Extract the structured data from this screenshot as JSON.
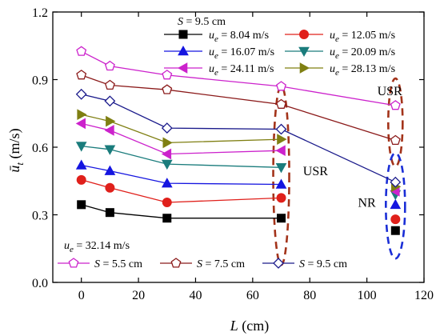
{
  "chart_data": {
    "type": "line",
    "xlabel": "L (cm)",
    "ylabel": "ū_t (m/s)",
    "xlim": [
      -10,
      120
    ],
    "ylim": [
      0.0,
      1.2
    ],
    "x_ticks": [
      "0",
      "20",
      "40",
      "60",
      "80",
      "100",
      "120"
    ],
    "y_ticks": [
      "0.0",
      "0.3",
      "0.6",
      "0.9",
      "1.2"
    ],
    "grid": false,
    "legends": [
      {
        "position": "top-right",
        "header": "S = 9.5 cm",
        "entries": [
          {
            "label": "u_e = 8.04 m/s",
            "series": 0
          },
          {
            "label": "u_e = 12.05 m/s",
            "series": 1
          },
          {
            "label": "u_e = 16.07 m/s",
            "series": 2
          },
          {
            "label": "u_e = 20.09 m/s",
            "series": 3
          },
          {
            "label": "u_e = 24.11 m/s",
            "series": 4
          },
          {
            "label": "u_e = 28.13 m/s",
            "series": 5
          }
        ]
      },
      {
        "position": "bottom-left",
        "header": "u_e = 32.14 m/s",
        "entries": [
          {
            "label": "S = 5.5 cm",
            "series": 6
          },
          {
            "label": "S = 7.5 cm",
            "series": 7
          },
          {
            "label": "S = 9.5 cm",
            "series": 8
          }
        ]
      }
    ],
    "series": [
      {
        "name": "u_e = 8.04 m/s",
        "color": "#000000",
        "marker": "square",
        "filled": true,
        "x": [
          0,
          10,
          30,
          70
        ],
        "y": [
          0.345,
          0.31,
          0.285,
          0.285
        ],
        "extra": {
          "x": 110,
          "y": 0.23
        }
      },
      {
        "name": "u_e = 12.05 m/s",
        "color": "#e0201b",
        "marker": "circle",
        "filled": true,
        "x": [
          0,
          10,
          30,
          70
        ],
        "y": [
          0.455,
          0.42,
          0.355,
          0.375
        ],
        "extra": {
          "x": 110,
          "y": 0.28
        }
      },
      {
        "name": "u_e = 16.07 m/s",
        "color": "#1515e0",
        "marker": "triangle-up",
        "filled": true,
        "x": [
          0,
          10,
          30,
          70
        ],
        "y": [
          0.52,
          0.495,
          0.44,
          0.435
        ],
        "extra": {
          "x": 110,
          "y": 0.345
        }
      },
      {
        "name": "u_e = 20.09 m/s",
        "color": "#1a7c7c",
        "marker": "triangle-down",
        "filled": true,
        "x": [
          0,
          10,
          30,
          70
        ],
        "y": [
          0.605,
          0.59,
          0.525,
          0.51
        ],
        "extra": {
          "x": 110,
          "y": 0.39
        }
      },
      {
        "name": "u_e = 24.11 m/s",
        "color": "#cc22cc",
        "marker": "triangle-left",
        "filled": true,
        "x": [
          0,
          10,
          30,
          70
        ],
        "y": [
          0.705,
          0.675,
          0.57,
          0.585
        ],
        "extra": {
          "x": 110,
          "y": 0.405
        }
      },
      {
        "name": "u_e = 28.13 m/s",
        "color": "#7f7f12",
        "marker": "triangle-right",
        "filled": true,
        "x": [
          0,
          10,
          30,
          70
        ],
        "y": [
          0.745,
          0.715,
          0.62,
          0.635
        ],
        "extra": {
          "x": 110,
          "y": 0.425
        }
      },
      {
        "name": "S = 5.5 cm",
        "color": "#cc22cc",
        "marker": "pentagon",
        "filled": false,
        "x": [
          0,
          10,
          30,
          70,
          110
        ],
        "y": [
          1.025,
          0.96,
          0.92,
          0.87,
          0.785
        ]
      },
      {
        "name": "S = 7.5 cm",
        "color": "#8b1a1a",
        "marker": "pentagon",
        "filled": false,
        "x": [
          0,
          10,
          30,
          70,
          110
        ],
        "y": [
          0.92,
          0.875,
          0.855,
          0.79,
          0.63
        ]
      },
      {
        "name": "S = 9.5 cm",
        "color": "#1a1a8b",
        "marker": "diamond",
        "filled": false,
        "x": [
          0,
          10,
          30,
          70,
          110
        ],
        "y": [
          0.835,
          0.805,
          0.685,
          0.68,
          0.445
        ]
      }
    ],
    "annotations": [
      {
        "text": "USR",
        "x": 108,
        "y": 0.83
      },
      {
        "text": "USR",
        "x": 82,
        "y": 0.475
      },
      {
        "text": "NR",
        "x": 100,
        "y": 0.335
      }
    ]
  }
}
